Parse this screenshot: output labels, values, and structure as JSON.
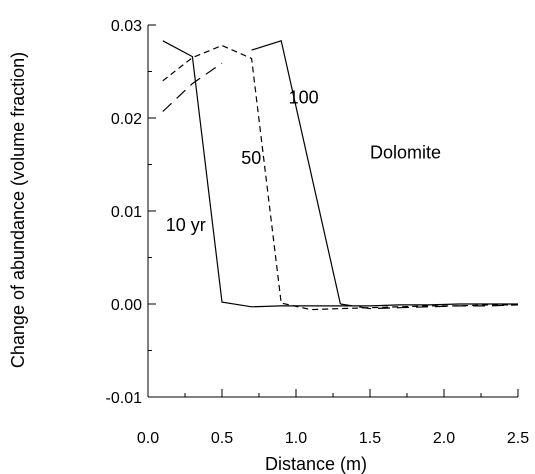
{
  "chart_data": {
    "type": "line",
    "xlabel": "Distance (m)",
    "ylabel": "Change of abundance (volume fraction)",
    "xlim": [
      0.0,
      2.5
    ],
    "ylim": [
      -0.01,
      0.03
    ],
    "x_ticks": [
      0.0,
      0.5,
      1.0,
      1.5,
      2.0,
      2.5
    ],
    "x_tick_labels": [
      "0.0",
      "0.5",
      "1.0",
      "1.5",
      "2.0",
      "2.5"
    ],
    "y_ticks": [
      -0.01,
      0.0,
      0.01,
      0.02,
      0.03
    ],
    "y_tick_labels": [
      "-0.01",
      "0.00",
      "0.01",
      "0.02",
      "0.03"
    ],
    "grid": false,
    "series": [
      {
        "name": "10 yr",
        "dash": "solid",
        "points": [
          [
            0.1,
            0.0283
          ],
          [
            0.3,
            0.0266
          ],
          [
            0.5,
            0.0002
          ],
          [
            0.7,
            -0.0003
          ],
          [
            0.9,
            -0.0002
          ],
          [
            1.1,
            -0.0002
          ],
          [
            1.3,
            -0.0002
          ],
          [
            1.5,
            -0.0002
          ],
          [
            1.7,
            -0.0001
          ],
          [
            1.9,
            -0.0001
          ],
          [
            2.1,
            0.0
          ],
          [
            2.3,
            0.0
          ],
          [
            2.5,
            0.0
          ]
        ]
      },
      {
        "name": "50",
        "dash": "dashed",
        "points": [
          [
            0.1,
            0.024
          ],
          [
            0.3,
            0.0265
          ],
          [
            0.5,
            0.0278
          ],
          [
            0.7,
            0.0264
          ],
          [
            0.9,
            0.0001
          ],
          [
            1.1,
            -0.0006
          ],
          [
            1.3,
            -0.0005
          ],
          [
            1.5,
            -0.0004
          ],
          [
            1.7,
            -0.0003
          ],
          [
            1.9,
            -0.0002
          ],
          [
            2.1,
            -0.0002
          ],
          [
            2.3,
            -0.0001
          ],
          [
            2.5,
            -0.0001
          ]
        ]
      },
      {
        "name": "100",
        "dash": "long-dash",
        "points": [
          [
            0.1,
            0.0207
          ],
          [
            0.3,
            0.0237
          ],
          [
            0.5,
            0.0259
          ]
        ]
      },
      {
        "name": "100",
        "dash": "solid",
        "points": [
          [
            0.7,
            0.0273
          ],
          [
            0.9,
            0.0283
          ],
          [
            1.3,
            0.0
          ]
        ]
      },
      {
        "name": "100",
        "dash": "long-dash",
        "points": [
          [
            1.3,
            0.0
          ],
          [
            1.5,
            -0.0005
          ],
          [
            1.7,
            -0.0004
          ],
          [
            1.9,
            -0.0003
          ],
          [
            2.1,
            -0.0002
          ],
          [
            2.3,
            -0.0002
          ],
          [
            2.5,
            -0.0001
          ]
        ]
      }
    ],
    "annotations": [
      {
        "text": "100",
        "x": 0.95,
        "y": 0.0222
      },
      {
        "text": "50",
        "x": 0.63,
        "y": 0.0157
      },
      {
        "text": "Dolomite",
        "x": 1.5,
        "y": 0.0163
      },
      {
        "text": "10 yr",
        "x": 0.12,
        "y": 0.0085
      }
    ]
  }
}
